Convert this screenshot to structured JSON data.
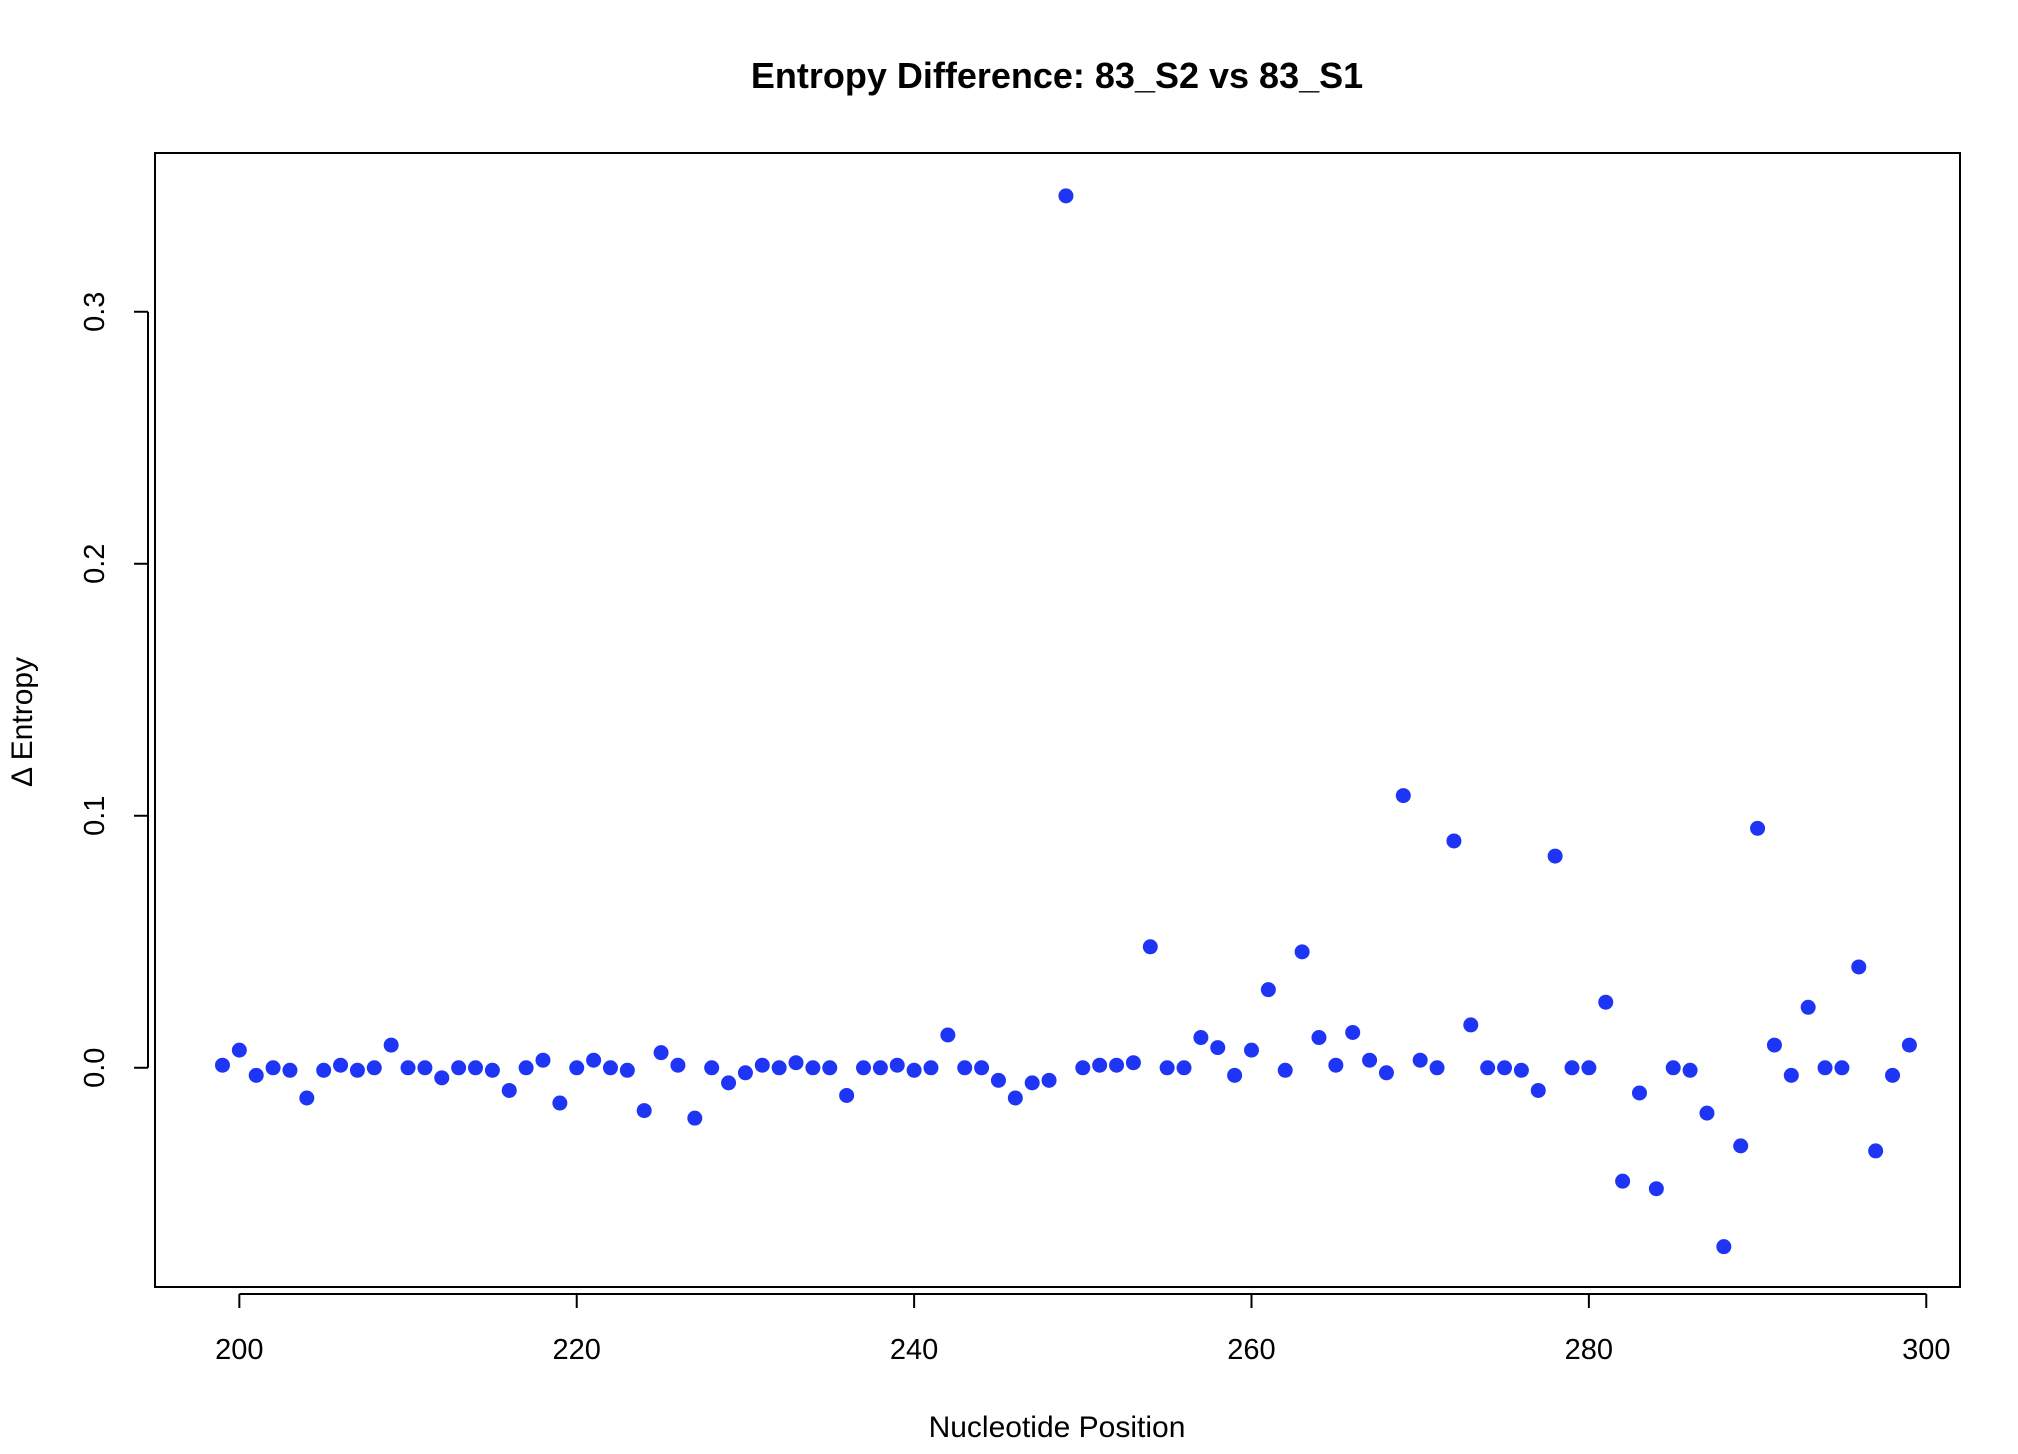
{
  "chart_data": {
    "type": "scatter",
    "title": "Entropy Difference: 83_S2 vs 83_S1",
    "xlabel": "Nucleotide Position",
    "ylabel": "Δ Entropy",
    "xlim": [
      195,
      302
    ],
    "ylim": [
      -0.087,
      0.363
    ],
    "xticks": [
      200,
      220,
      240,
      260,
      280,
      300
    ],
    "xtick_labels": [
      "200",
      "220",
      "240",
      "260",
      "280",
      "300"
    ],
    "yticks": [
      0.0,
      0.1,
      0.2,
      0.3
    ],
    "ytick_labels": [
      "0.0",
      "0.1",
      "0.2",
      "0.3"
    ],
    "grid": false,
    "legend": "none",
    "marker_color": "#1f35f5",
    "x": [
      199,
      200,
      201,
      202,
      203,
      204,
      205,
      206,
      207,
      208,
      209,
      210,
      211,
      212,
      213,
      214,
      215,
      216,
      217,
      218,
      219,
      220,
      221,
      222,
      223,
      224,
      225,
      226,
      227,
      228,
      229,
      230,
      231,
      232,
      233,
      234,
      235,
      236,
      237,
      238,
      239,
      240,
      241,
      242,
      243,
      244,
      245,
      246,
      247,
      248,
      249,
      250,
      251,
      252,
      253,
      254,
      255,
      256,
      257,
      258,
      259,
      260,
      261,
      262,
      263,
      264,
      265,
      266,
      267,
      268,
      269,
      270,
      271,
      272,
      273,
      274,
      275,
      276,
      277,
      278,
      279,
      280,
      281,
      282,
      283,
      284,
      285,
      286,
      287,
      288,
      289,
      290,
      291,
      292,
      293,
      294,
      295,
      296,
      297,
      298,
      299
    ],
    "y": [
      0.001,
      0.007,
      -0.003,
      0.0,
      -0.001,
      -0.012,
      -0.001,
      0.001,
      -0.001,
      0.0,
      0.009,
      0.0,
      0.0,
      -0.004,
      0.0,
      0.0,
      -0.001,
      -0.009,
      0.0,
      0.003,
      -0.014,
      0.0,
      0.003,
      0.0,
      -0.001,
      -0.017,
      0.006,
      0.001,
      -0.02,
      0.0,
      -0.006,
      -0.002,
      0.001,
      0.0,
      0.002,
      0.0,
      0.0,
      -0.011,
      0.0,
      0.0,
      0.001,
      -0.001,
      0.0,
      0.013,
      0.0,
      0.0,
      -0.005,
      -0.012,
      -0.006,
      -0.005,
      0.346,
      0.0,
      0.001,
      0.001,
      0.002,
      0.048,
      0.0,
      0.0,
      0.012,
      0.008,
      -0.003,
      0.007,
      0.031,
      -0.001,
      0.046,
      0.012,
      0.001,
      0.014,
      0.003,
      -0.002,
      0.108,
      0.003,
      0.0,
      0.09,
      0.017,
      0.0,
      0.0,
      -0.001,
      -0.009,
      0.084,
      0.0,
      0.0,
      0.026,
      -0.045,
      -0.01,
      -0.048,
      0.0,
      -0.001,
      -0.018,
      -0.071,
      -0.031,
      0.095,
      0.009,
      -0.003,
      0.024,
      0.0,
      0.0,
      0.04,
      -0.033,
      -0.003,
      0.009
    ]
  }
}
